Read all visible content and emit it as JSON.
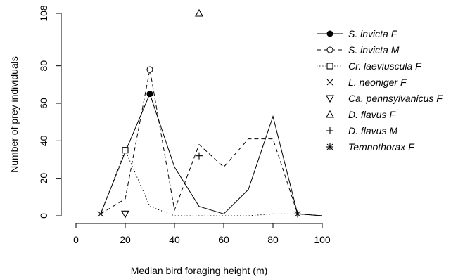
{
  "chart_data": {
    "type": "line",
    "xlabel": "Median bird foraging height (m)",
    "ylabel": "Number of prey individuals",
    "xlim": [
      0,
      100
    ],
    "ylim": [
      0,
      108
    ],
    "x_ticks": [
      0,
      20,
      40,
      60,
      80,
      100
    ],
    "y_ticks": [
      0,
      20,
      40,
      60,
      80,
      108
    ],
    "grid": false,
    "legend_position": "top-right",
    "series": [
      {
        "name": "S. invicta F",
        "line": "solid",
        "marker": "filled-circle",
        "x": [
          10,
          20,
          30,
          40,
          50,
          60,
          70,
          80,
          90,
          100
        ],
        "y": [
          1,
          34,
          65,
          26,
          5,
          1,
          14,
          53,
          1,
          0
        ],
        "marker_points": [
          {
            "x": 30,
            "y": 65
          }
        ]
      },
      {
        "name": "S. invicta M",
        "line": "dashed",
        "marker": "open-circle",
        "x": [
          10,
          20,
          30,
          40,
          50,
          60,
          70,
          80,
          90,
          100
        ],
        "y": [
          1,
          9,
          78,
          3,
          38,
          26,
          41,
          41,
          1,
          0
        ],
        "marker_points": [
          {
            "x": 30,
            "y": 78
          }
        ]
      },
      {
        "name": "Cr. laeviuscula F",
        "line": "dotted",
        "marker": "open-square",
        "x": [
          10,
          20,
          30,
          40,
          50,
          60,
          70,
          80,
          90,
          100
        ],
        "y": [
          1,
          35,
          5,
          0,
          0,
          0,
          0,
          1,
          1,
          0
        ],
        "marker_points": [
          {
            "x": 20,
            "y": 35
          }
        ]
      },
      {
        "name": "L. neoniger F",
        "line": "none",
        "marker": "cross-x",
        "x": [],
        "y": [],
        "marker_points": [
          {
            "x": 10,
            "y": 1
          }
        ]
      },
      {
        "name": "Ca. pennsylvanicus F",
        "line": "none",
        "marker": "triangle-down",
        "x": [],
        "y": [],
        "marker_points": [
          {
            "x": 20,
            "y": 1
          }
        ]
      },
      {
        "name": "D. flavus F",
        "line": "none",
        "marker": "triangle-up",
        "x": [],
        "y": [],
        "marker_points": [
          {
            "x": 50,
            "y": 108
          }
        ]
      },
      {
        "name": "D. flavus M",
        "line": "none",
        "marker": "plus",
        "x": [],
        "y": [],
        "marker_points": [
          {
            "x": 50,
            "y": 32
          }
        ]
      },
      {
        "name": "Temnothorax F",
        "line": "none",
        "marker": "asterisk",
        "x": [],
        "y": [],
        "marker_points": [
          {
            "x": 90,
            "y": 1
          }
        ]
      }
    ]
  }
}
